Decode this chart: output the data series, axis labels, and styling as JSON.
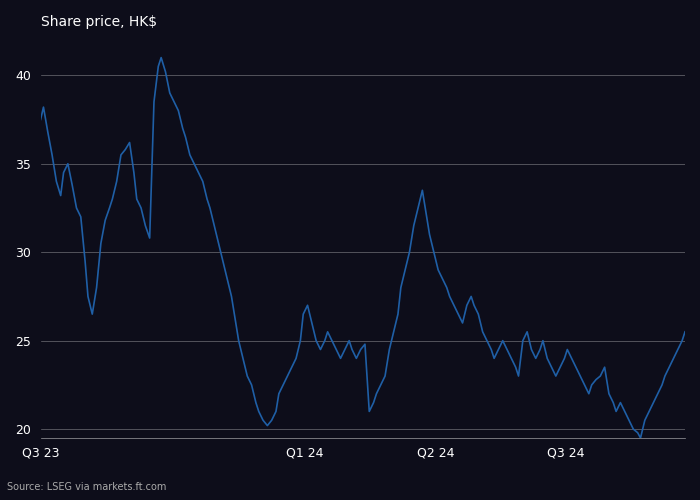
{
  "title": "Share price, HK$",
  "ylabel": "Share price, HK$",
  "source": "Source: LSEG via markets.ft.com",
  "line_color": "#1f5fa6",
  "background_color": "#1a1a2e",
  "plot_bg_color": "#1a1a2e",
  "grid_color": "#ffffff",
  "text_color": "#ffffff",
  "ylim": [
    19.5,
    42
  ],
  "yticks": [
    20,
    25,
    30,
    35,
    40
  ],
  "price_data": [
    37.5,
    38.2,
    36.8,
    35.5,
    34.0,
    33.2,
    34.5,
    35.0,
    33.8,
    32.5,
    32.0,
    29.5,
    27.5,
    26.5,
    28.0,
    30.5,
    31.8,
    32.5,
    33.0,
    34.0,
    35.5,
    35.8,
    36.2,
    34.5,
    33.0,
    32.5,
    31.5,
    30.8,
    38.5,
    40.5,
    41.0,
    40.2,
    39.0,
    38.5,
    38.0,
    37.0,
    36.5,
    35.5,
    35.0,
    34.5,
    34.0,
    33.0,
    32.5,
    31.5,
    30.5,
    29.5,
    28.5,
    27.5,
    26.5,
    25.0,
    24.0,
    23.0,
    22.5,
    21.5,
    21.0,
    20.5,
    20.2,
    20.5,
    21.0,
    22.0,
    22.5,
    23.0,
    23.5,
    24.0,
    25.0,
    26.5,
    27.0,
    26.0,
    25.0,
    24.5,
    25.0,
    25.5,
    25.0,
    24.5,
    24.0,
    24.5,
    25.0,
    24.5,
    24.0,
    24.5,
    24.8,
    21.0,
    21.5,
    22.0,
    22.5,
    23.0,
    24.5,
    25.5,
    26.5,
    28.0,
    29.0,
    30.0,
    31.5,
    32.5,
    33.5,
    32.5,
    31.0,
    30.0,
    29.0,
    28.5,
    28.0,
    27.5,
    27.0,
    26.5,
    26.0,
    27.0,
    27.5,
    27.0,
    26.5,
    25.5,
    25.0,
    24.5,
    24.0,
    24.5,
    25.0,
    24.5,
    24.0,
    23.5,
    23.0,
    25.0,
    25.5,
    24.5,
    24.0,
    24.5,
    25.0,
    24.0,
    23.5,
    23.0,
    23.5,
    24.0,
    24.5,
    24.0,
    23.5,
    23.0,
    22.5,
    22.0,
    22.5,
    22.8,
    23.0,
    23.5,
    22.0,
    21.5,
    21.0,
    21.5,
    21.0,
    20.5,
    20.0,
    19.8,
    19.5,
    20.5,
    21.0,
    21.5,
    22.0,
    22.5,
    23.0,
    23.5,
    24.0,
    24.5,
    25.0,
    25.5
  ]
}
